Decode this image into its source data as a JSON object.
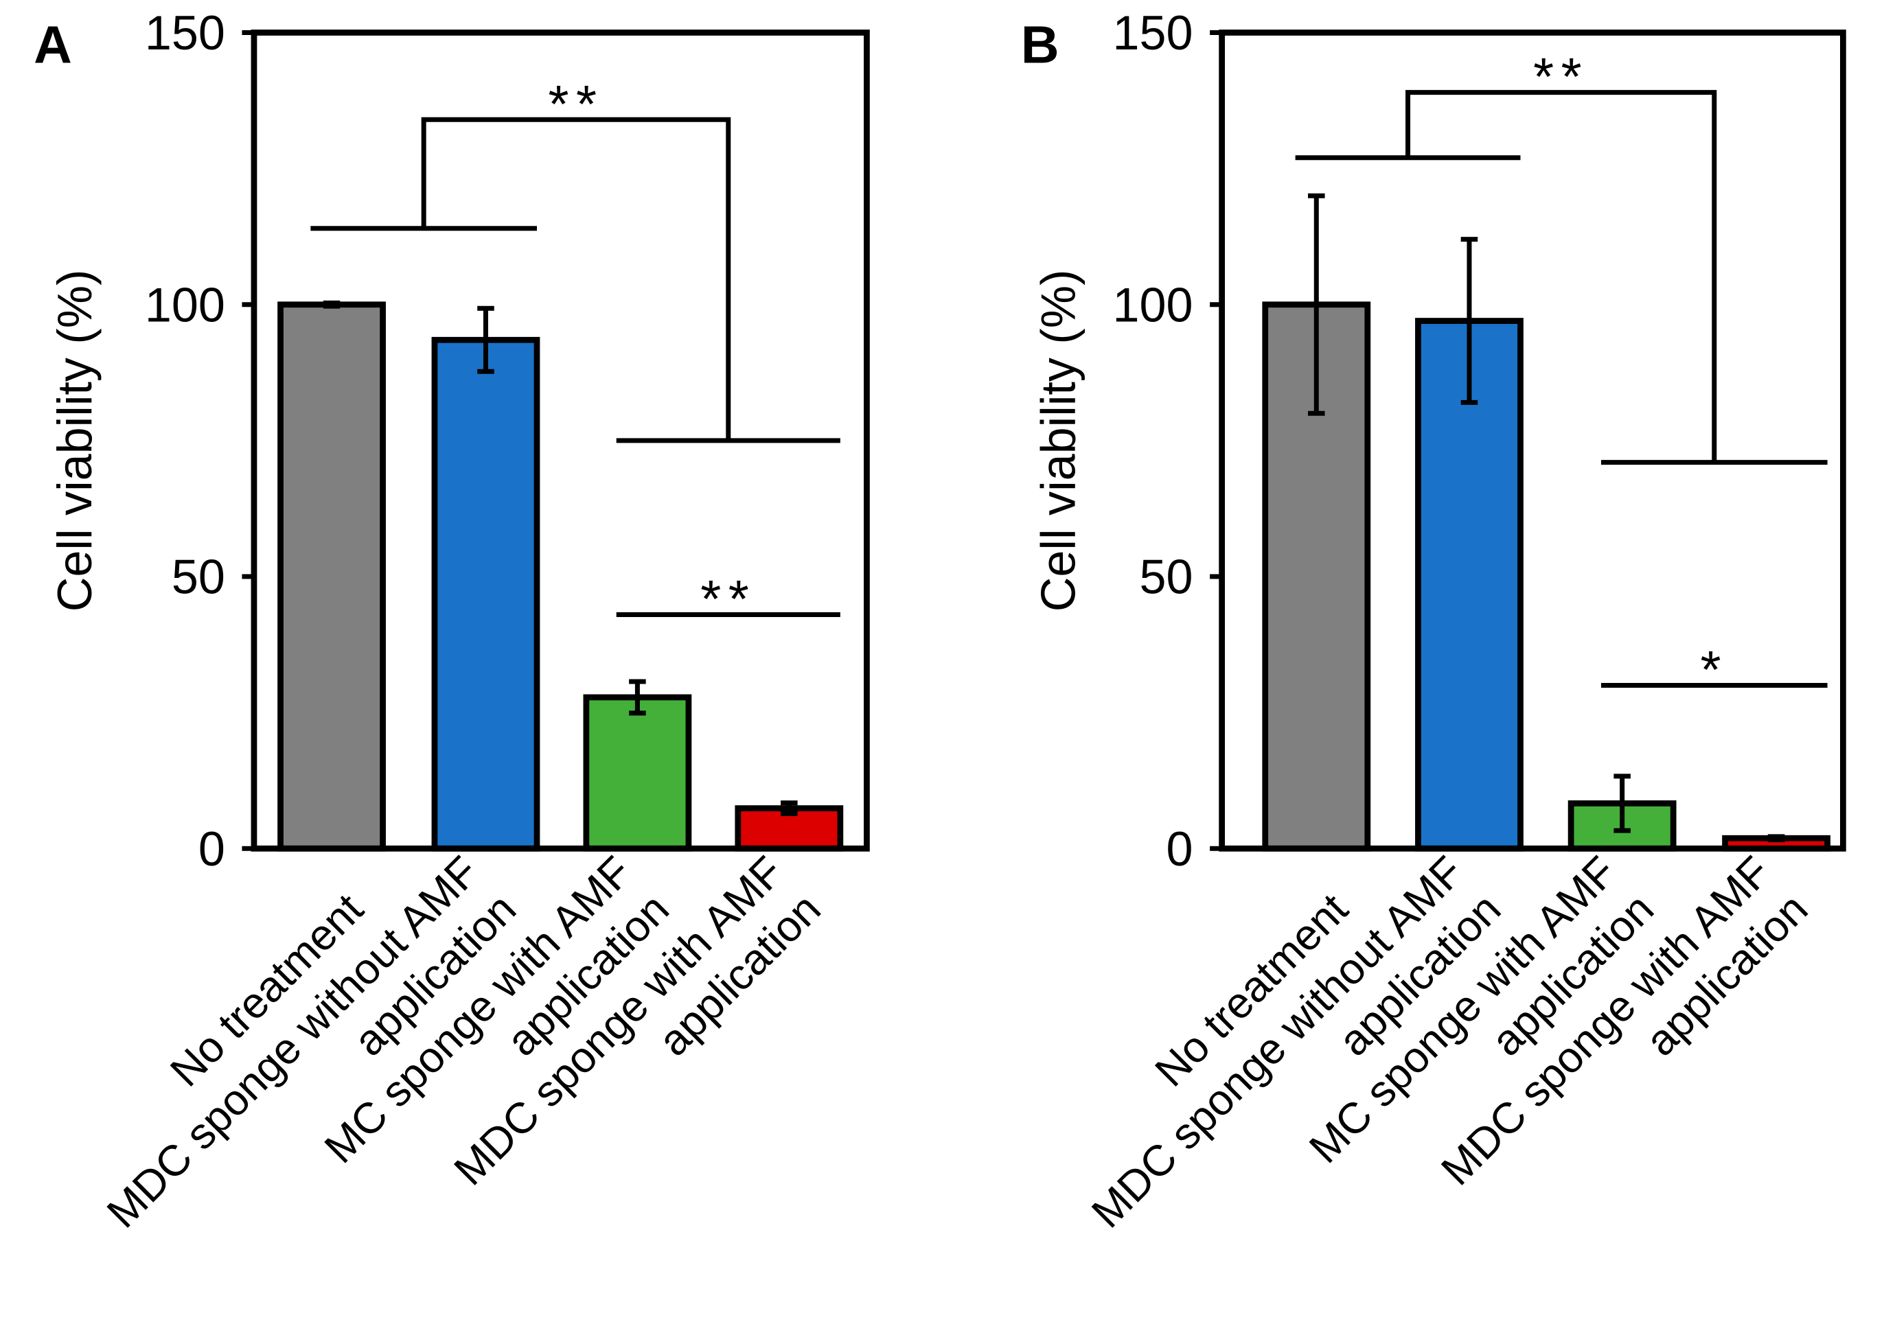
{
  "colors": {
    "axis": "#000000",
    "bars": [
      "#808080",
      "#1a73c9",
      "#44b03a",
      "#dd0000"
    ]
  },
  "chart_data": [
    {
      "type": "bar",
      "panel_label": "A",
      "ylabel": "Cell viability (%)",
      "ylim": [
        0,
        150
      ],
      "yticks": [
        "0",
        "50",
        "100",
        "150"
      ],
      "ytick_values": [
        0,
        50,
        100,
        150
      ],
      "categories": [
        [
          "No treatment"
        ],
        [
          "MDC sponge without AMF",
          "application"
        ],
        [
          "MC sponge with  AMF",
          "application"
        ],
        [
          "MDC sponge with  AMF",
          "application"
        ]
      ],
      "values": [
        100,
        93.5,
        27.8,
        7.4
      ],
      "error": [
        0.3,
        5.8,
        2.9,
        1.0
      ],
      "grid": false,
      "legend": "none",
      "annotations": [
        {
          "label": "**",
          "left_group": [
            0,
            1
          ],
          "right_group": [
            2,
            3
          ],
          "left_y": 114,
          "right_y": 75,
          "top_y": 134
        },
        {
          "label": "**",
          "between": [
            2,
            3
          ],
          "y": 43
        }
      ]
    },
    {
      "type": "bar",
      "panel_label": "B",
      "ylabel": "Cell viability (%)",
      "ylim": [
        0,
        150
      ],
      "yticks": [
        "0",
        "50",
        "100",
        "150"
      ],
      "ytick_values": [
        0,
        50,
        100,
        150
      ],
      "categories": [
        [
          "No treatment"
        ],
        [
          "MDC sponge without AMF",
          "application"
        ],
        [
          "MC sponge with  AMF",
          "application"
        ],
        [
          "MDC sponge with  AMF",
          "application"
        ]
      ],
      "values": [
        100,
        97,
        8.3,
        1.9
      ],
      "error": [
        20,
        15,
        5,
        0.3
      ],
      "grid": false,
      "legend": "none",
      "annotations": [
        {
          "label": "**",
          "left_group": [
            0,
            1
          ],
          "right_group": [
            2,
            3
          ],
          "left_y": 127,
          "right_y": 71,
          "top_y": 139
        },
        {
          "label": "*",
          "between": [
            2,
            3
          ],
          "y": 30
        }
      ]
    }
  ]
}
